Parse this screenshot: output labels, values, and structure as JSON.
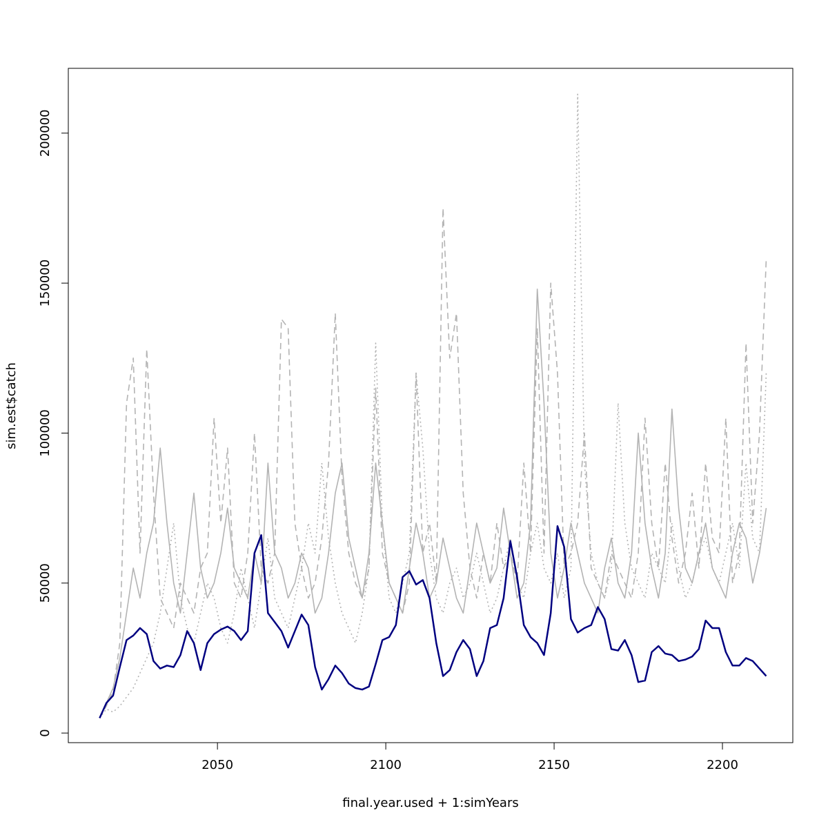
{
  "chart_data": {
    "type": "line",
    "x_label": "final.year.used + 1:simYears",
    "y_label": "sim.est$catch",
    "xlim": [
      2005.7,
      2220.9
    ],
    "ylim": [
      -3200,
      221600
    ],
    "xticks": [
      2050,
      2100,
      2150,
      2200
    ],
    "yticks": [
      0,
      50000,
      100000,
      150000,
      200000
    ],
    "x": [
      2015,
      2017,
      2019,
      2021,
      2023,
      2025,
      2027,
      2029,
      2031,
      2033,
      2035,
      2037,
      2039,
      2041,
      2043,
      2045,
      2047,
      2049,
      2051,
      2053,
      2055,
      2057,
      2059,
      2061,
      2063,
      2065,
      2067,
      2069,
      2071,
      2073,
      2075,
      2077,
      2079,
      2081,
      2083,
      2085,
      2087,
      2089,
      2091,
      2093,
      2095,
      2097,
      2099,
      2101,
      2103,
      2105,
      2107,
      2109,
      2111,
      2113,
      2115,
      2117,
      2119,
      2121,
      2123,
      2125,
      2127,
      2129,
      2131,
      2133,
      2135,
      2137,
      2139,
      2141,
      2143,
      2145,
      2147,
      2149,
      2151,
      2153,
      2155,
      2157,
      2159,
      2161,
      2163,
      2165,
      2167,
      2169,
      2171,
      2173,
      2175,
      2177,
      2179,
      2181,
      2183,
      2185,
      2187,
      2189,
      2191,
      2193,
      2195,
      2197,
      2199,
      2201,
      2203,
      2205,
      2207,
      2209,
      2211,
      2213
    ],
    "series": [
      {
        "color": "#b3b3b3",
        "linestyle": "solid",
        "width": 1.6,
        "values": [
          5000,
          10000,
          15000,
          25000,
          40000,
          55000,
          45000,
          60000,
          70000,
          95000,
          70000,
          50000,
          40000,
          60000,
          80000,
          55000,
          45000,
          50000,
          60000,
          75000,
          55000,
          50000,
          45000,
          60000,
          50000,
          90000,
          60000,
          55000,
          45000,
          50000,
          60000,
          55000,
          40000,
          45000,
          60000,
          80000,
          90000,
          65000,
          55000,
          45000,
          60000,
          90000,
          70000,
          50000,
          45000,
          40000,
          55000,
          70000,
          60000,
          45000,
          50000,
          65000,
          55000,
          45000,
          40000,
          55000,
          70000,
          60000,
          50000,
          55000,
          75000,
          60000,
          45000,
          50000,
          70000,
          148000,
          110000,
          60000,
          45000,
          55000,
          70000,
          60000,
          50000,
          45000,
          40000,
          55000,
          65000,
          50000,
          45000,
          60000,
          100000,
          70000,
          55000,
          45000,
          60000,
          108000,
          75000,
          55000,
          50000,
          60000,
          70000,
          55000,
          50000,
          45000,
          60000,
          70000,
          65000,
          50000,
          60000,
          75000
        ]
      },
      {
        "color": "#b3b3b3",
        "linestyle": "dashed",
        "width": 1.6,
        "values": [
          5000,
          9000,
          14000,
          30000,
          110000,
          125000,
          60000,
          128000,
          80000,
          45000,
          40000,
          35000,
          50000,
          45000,
          40000,
          55000,
          60000,
          105000,
          70000,
          95000,
          50000,
          45000,
          60000,
          100000,
          55000,
          50000,
          60000,
          138000,
          135000,
          70000,
          55000,
          45000,
          50000,
          65000,
          90000,
          140000,
          85000,
          60000,
          50000,
          45000,
          55000,
          115000,
          60000,
          50000,
          45000,
          40000,
          50000,
          120000,
          60000,
          70000,
          50000,
          175000,
          125000,
          140000,
          80000,
          55000,
          45000,
          60000,
          50000,
          70000,
          55000,
          60000,
          50000,
          90000,
          60000,
          135000,
          60000,
          150000,
          120000,
          55000,
          60000,
          70000,
          100000,
          55000,
          50000,
          45000,
          60000,
          55000,
          50000,
          45000,
          60000,
          105000,
          70000,
          55000,
          90000,
          65000,
          50000,
          60000,
          80000,
          55000,
          90000,
          65000,
          60000,
          105000,
          50000,
          60000,
          130000,
          70000,
          100000,
          158000
        ]
      },
      {
        "color": "#b3b3b3",
        "linestyle": "dotted",
        "width": 1.6,
        "values": [
          5000,
          8000,
          7000,
          9000,
          12000,
          15000,
          20000,
          25000,
          30000,
          40000,
          55000,
          70000,
          45000,
          35000,
          30000,
          40000,
          50000,
          45000,
          35000,
          30000,
          40000,
          55000,
          45000,
          35000,
          50000,
          65000,
          45000,
          40000,
          35000,
          45000,
          55000,
          70000,
          60000,
          90000,
          65000,
          50000,
          40000,
          35000,
          30000,
          40000,
          55000,
          130000,
          70000,
          45000,
          40000,
          50000,
          60000,
          120000,
          95000,
          60000,
          45000,
          40000,
          50000,
          55000,
          45000,
          50000,
          60000,
          50000,
          40000,
          45000,
          55000,
          65000,
          50000,
          45000,
          60000,
          70000,
          55000,
          50000,
          60000,
          45000,
          55000,
          213000,
          90000,
          60000,
          50000,
          45000,
          55000,
          110000,
          70000,
          55000,
          50000,
          45000,
          60000,
          55000,
          50000,
          70000,
          55000,
          45000,
          50000,
          60000,
          65000,
          55000,
          50000,
          60000,
          70000,
          55000,
          90000,
          65000,
          60000,
          120000
        ]
      },
      {
        "color": "#000080",
        "linestyle": "solid",
        "width": 2.5,
        "values": [
          5000,
          10000,
          12500,
          22000,
          31000,
          32500,
          35000,
          33000,
          24000,
          21500,
          22500,
          22000,
          26000,
          34000,
          30000,
          21000,
          30000,
          33000,
          34500,
          35500,
          34000,
          31000,
          34000,
          60000,
          66000,
          40000,
          37000,
          34000,
          28500,
          34000,
          39500,
          36000,
          22000,
          14500,
          18000,
          22500,
          20000,
          16500,
          15000,
          14500,
          15500,
          23000,
          31000,
          32000,
          36000,
          52000,
          54000,
          49500,
          51000,
          45000,
          30000,
          19000,
          21000,
          27000,
          31000,
          28000,
          19000,
          24000,
          35000,
          36000,
          45000,
          64000,
          52000,
          36000,
          32000,
          30000,
          26000,
          40000,
          69000,
          62000,
          38000,
          33500,
          35000,
          36000,
          42000,
          38000,
          28000,
          27500,
          31000,
          26000,
          17000,
          17500,
          27000,
          29000,
          26500,
          26000,
          24000,
          24500,
          25500,
          28000,
          37500,
          35000,
          35000,
          27000,
          22500,
          22500,
          25000,
          24000,
          21500,
          19000
        ]
      }
    ]
  }
}
